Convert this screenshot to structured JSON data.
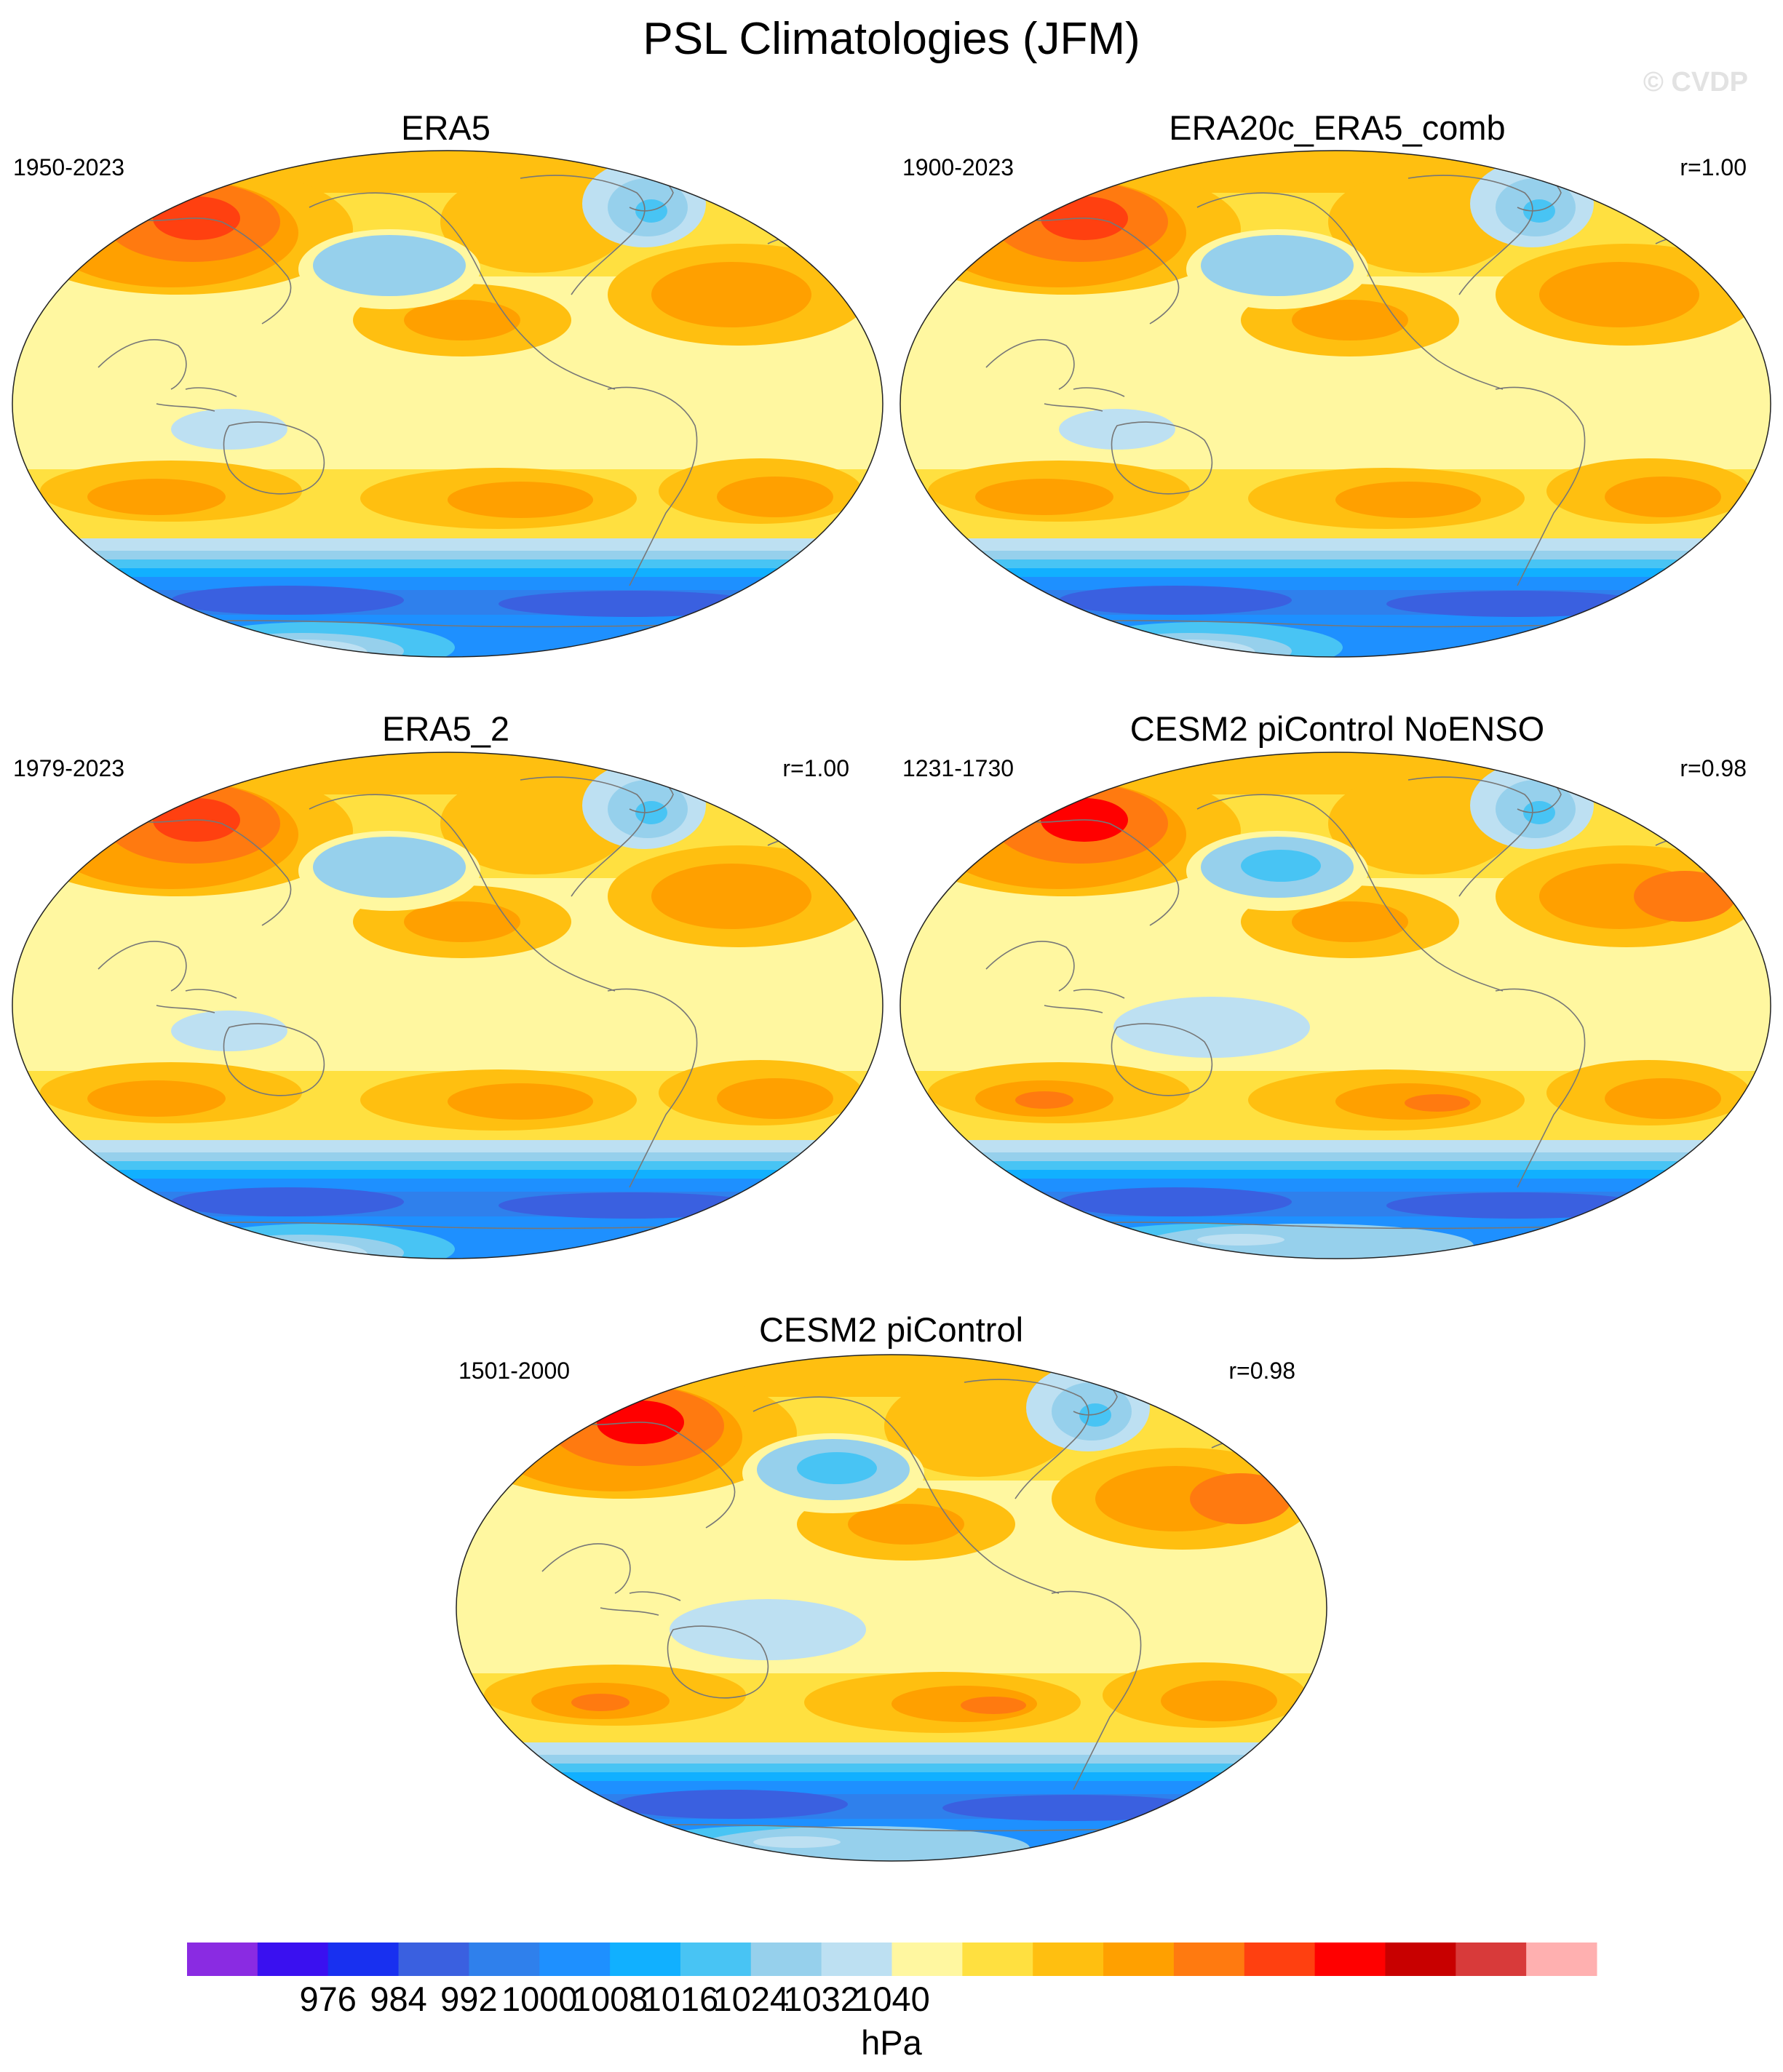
{
  "title": "PSL Climatologies (JFM)",
  "watermark": "© CVDP",
  "panels": [
    {
      "name": "ERA5",
      "period": "1950-2023",
      "r": "",
      "variant": 0
    },
    {
      "name": "ERA20c_ERA5_comb",
      "period": "1900-2023",
      "r": "r=1.00",
      "variant": 0
    },
    {
      "name": "ERA5_2",
      "period": "1979-2023",
      "r": "r=1.00",
      "variant": 0
    },
    {
      "name": "CESM2 piControl NoENSO",
      "period": "1231-1730",
      "r": "r=0.98",
      "variant": 1
    },
    {
      "name": "CESM2 piControl",
      "period": "1501-2000",
      "r": "r=0.98",
      "variant": 1
    }
  ],
  "colorbar": {
    "unit": "hPa",
    "labels": [
      "976",
      "984",
      "992",
      "1000",
      "1008",
      "1016",
      "1024",
      "1032",
      "1040"
    ],
    "colors": [
      "#8a2be2",
      "#3a10f0",
      "#1830f0",
      "#3a60e0",
      "#2f80ec",
      "#1e90ff",
      "#11b0ff",
      "#48c4f4",
      "#96d0ec",
      "#bde0f2",
      "#fff7a0",
      "#ffe040",
      "#ffbf10",
      "#ffa000",
      "#ff7a10",
      "#ff4010",
      "#ff0000",
      "#c80000",
      "#d83a3a",
      "#ffb0b0"
    ]
  }
}
